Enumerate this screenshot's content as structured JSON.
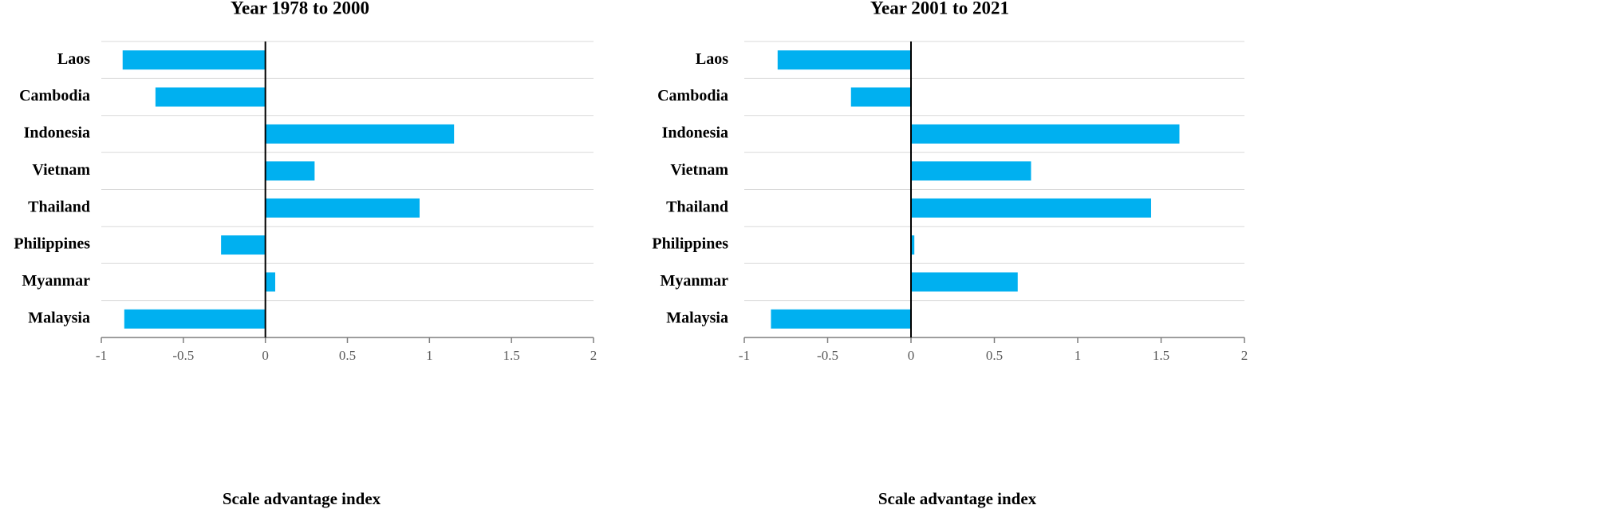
{
  "chart_data": [
    {
      "type": "hbar",
      "title": "Year 1978 to 2000",
      "x_label": "Scale advantage index",
      "categories": [
        "Laos",
        "Cambodia",
        "Indonesia",
        "Vietnam",
        "Thailand",
        "Philippines",
        "Myanmar",
        "Malaysia"
      ],
      "values": [
        -0.87,
        -0.67,
        1.15,
        0.3,
        0.94,
        -0.27,
        0.06,
        -0.86
      ],
      "color": "#00b0f0",
      "xlim": [
        -1,
        2
      ],
      "xticks": [
        -1,
        -0.5,
        0,
        0.5,
        1,
        1.5,
        2
      ]
    },
    {
      "type": "hbar",
      "title": "Year 2001 to 2021",
      "x_label": "Scale advantage index",
      "categories": [
        "Laos",
        "Cambodia",
        "Indonesia",
        "Vietnam",
        "Thailand",
        "Philippines",
        "Myanmar",
        "Malaysia"
      ],
      "values": [
        -0.8,
        -0.36,
        1.61,
        0.72,
        1.44,
        0.02,
        0.64,
        -0.84
      ],
      "color": "#00b0f0",
      "xlim": [
        -1,
        2
      ],
      "xticks": [
        -1,
        -0.5,
        0,
        0.5,
        1,
        1.5,
        2
      ]
    }
  ]
}
